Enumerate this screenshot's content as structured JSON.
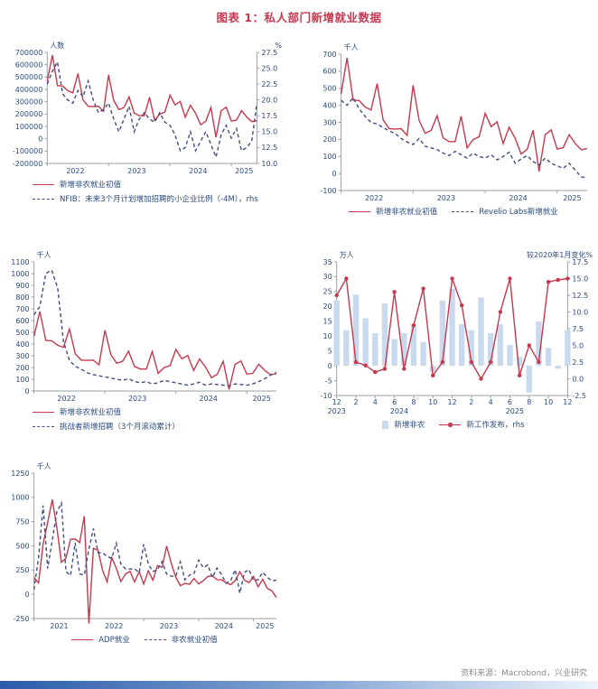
{
  "page": {
    "title": "图表 1：私人部门新增就业数据",
    "source": "资料来源：Macrobond，兴业研究"
  },
  "colors": {
    "accent_red": "#c5394f",
    "navy": "#3f4f7d",
    "bar_blue": "#c9d9ee",
    "axis_line": "#9aa0a6",
    "text_navy": "#2b4a7d",
    "source_gray": "#8a8a8a",
    "footer_start": "#2a5caa",
    "footer_mid": "#89a9d6",
    "footer_end": "#edf3fa"
  },
  "chart_data": [
    {
      "id": "nonfarm-vs-nfib",
      "type": "line",
      "unit_left": "人数",
      "unit_right": "%",
      "x_mode": "years",
      "x_start_year": 2022,
      "n_points": 42,
      "x_tick_years": [
        "2022",
        "2023",
        "2024",
        "2025"
      ],
      "yticks_left": [
        "700000",
        "600000",
        "500000",
        "400000",
        "300000",
        "200000",
        "100000",
        "0",
        "-100000",
        "-200000"
      ],
      "ylim_left": [
        -200000,
        700000
      ],
      "yticks_right": [
        "27.5",
        "25.0",
        "22.5",
        "20.0",
        "17.5",
        "15.0",
        "12.5",
        "10.0"
      ],
      "ylim_right": [
        10,
        27.5
      ],
      "series": [
        {
          "name": "新增非农就业初值",
          "axis": "left",
          "type": "line",
          "style": "solid",
          "color": "accent_red",
          "values": [
            467000,
            678000,
            431000,
            428000,
            390000,
            372000,
            528000,
            315000,
            263000,
            261000,
            263000,
            223000,
            517000,
            311000,
            236000,
            253000,
            339000,
            209000,
            187000,
            187000,
            336000,
            150000,
            199000,
            216000,
            353000,
            275000,
            303000,
            175000,
            272000,
            206000,
            114000,
            142000,
            254000,
            12000,
            227000,
            256000,
            143000,
            151000,
            228000,
            177000,
            139000,
            147000
          ]
        },
        {
          "name": "NFIB：未来3个月计划增加招聘的小企业比例（-4M），rhs",
          "axis": "right",
          "type": "line",
          "style": "dashed",
          "color": "navy",
          "values": [
            22.5,
            24.5,
            26.0,
            21.0,
            20.0,
            19.5,
            21.5,
            20.5,
            23.0,
            20.0,
            18.0,
            18.5,
            19.5,
            17.0,
            15.0,
            17.0,
            19.0,
            15.0,
            17.0,
            18.0,
            17.0,
            16.5,
            18.0,
            16.5,
            16.0,
            14.5,
            12.0,
            12.5,
            15.0,
            12.0,
            13.5,
            15.0,
            13.0,
            11.0,
            14.5,
            16.0,
            14.0,
            15.5,
            12.0,
            12.5,
            13.5,
            19.5
          ]
        }
      ]
    },
    {
      "id": "nonfarm-vs-revelio",
      "type": "line",
      "unit_left": "千人",
      "x_mode": "years",
      "x_start_year": 2022,
      "n_points": 42,
      "x_tick_years": [
        "2022",
        "2023",
        "2024",
        "2025"
      ],
      "yticks_left": [
        "700",
        "600",
        "500",
        "400",
        "300",
        "200",
        "100",
        "0",
        "-100"
      ],
      "ylim_left": [
        -100,
        700
      ],
      "series": [
        {
          "name": "新增非农就业初值",
          "axis": "left",
          "type": "line",
          "style": "solid",
          "color": "accent_red",
          "values": [
            467,
            678,
            431,
            428,
            390,
            372,
            528,
            315,
            263,
            261,
            263,
            223,
            517,
            311,
            236,
            253,
            339,
            209,
            187,
            187,
            336,
            150,
            199,
            216,
            353,
            275,
            303,
            175,
            272,
            206,
            114,
            142,
            254,
            12,
            227,
            256,
            143,
            151,
            228,
            177,
            139,
            147
          ]
        },
        {
          "name": "Revelio Labs新增就业",
          "axis": "left",
          "type": "line",
          "style": "dashed",
          "color": "navy",
          "values": [
            430,
            400,
            445,
            380,
            335,
            300,
            290,
            270,
            250,
            235,
            205,
            185,
            170,
            205,
            160,
            150,
            140,
            120,
            105,
            130,
            110,
            90,
            120,
            100,
            90,
            110,
            80,
            100,
            125,
            60,
            85,
            105,
            70,
            50,
            90,
            60,
            45,
            30,
            60,
            20,
            -20,
            -25
          ]
        }
      ]
    },
    {
      "id": "nonfarm-vs-challenger",
      "type": "line",
      "unit_left": "千人",
      "x_mode": "years",
      "x_start_year": 2022,
      "n_points": 42,
      "x_tick_years": [
        "2022",
        "2023",
        "2024",
        "2025"
      ],
      "yticks_left": [
        "1100",
        "1000",
        "900",
        "800",
        "700",
        "600",
        "500",
        "400",
        "300",
        "200",
        "100",
        "0"
      ],
      "ylim_left": [
        0,
        1100
      ],
      "series": [
        {
          "name": "新增非农就业初值",
          "axis": "left",
          "type": "line",
          "style": "solid",
          "color": "accent_red",
          "values": [
            467,
            678,
            431,
            428,
            390,
            372,
            528,
            315,
            263,
            261,
            263,
            223,
            517,
            311,
            236,
            253,
            339,
            209,
            187,
            187,
            336,
            150,
            199,
            216,
            353,
            275,
            303,
            175,
            272,
            206,
            114,
            142,
            254,
            12,
            227,
            256,
            143,
            151,
            228,
            177,
            139,
            147
          ]
        },
        {
          "name": "挑战者新增招聘（3个月滚动累计）",
          "axis": "left",
          "type": "line",
          "style": "dashed",
          "color": "navy",
          "values": [
            650,
            720,
            1000,
            1030,
            880,
            420,
            260,
            210,
            185,
            155,
            140,
            130,
            120,
            110,
            100,
            90,
            105,
            80,
            70,
            80,
            60,
            70,
            90,
            80,
            70,
            60,
            50,
            60,
            75,
            50,
            60,
            55,
            50,
            45,
            60,
            55,
            50,
            60,
            80,
            105,
            135,
            160
          ]
        }
      ]
    },
    {
      "id": "nonfarm-vs-job-postings",
      "type": "mixed",
      "unit_left": "万人",
      "unit_right": "较2020年1月变化%",
      "x_mode": "months",
      "n_points": 25,
      "x_tick_labels": [
        {
          "i": 0,
          "label": "12"
        },
        {
          "i": 2,
          "label": "2"
        },
        {
          "i": 4,
          "label": "4"
        },
        {
          "i": 6,
          "label": "6"
        },
        {
          "i": 8,
          "label": "8"
        },
        {
          "i": 10,
          "label": "10"
        },
        {
          "i": 12,
          "label": "12"
        },
        {
          "i": 14,
          "label": "2"
        },
        {
          "i": 16,
          "label": "4"
        },
        {
          "i": 18,
          "label": "6"
        },
        {
          "i": 20,
          "label": "8"
        },
        {
          "i": 22,
          "label": "10"
        },
        {
          "i": 24,
          "label": "12"
        }
      ],
      "x_year_labels": [
        {
          "i": 0,
          "label": "2023"
        },
        {
          "i": 6.5,
          "label": "2024"
        },
        {
          "i": 18.5,
          "label": "2025"
        }
      ],
      "yticks_left": [
        "35",
        "30",
        "25",
        "20",
        "15",
        "10",
        "5",
        "0",
        "-5",
        "-10"
      ],
      "ylim_left": [
        -10,
        35
      ],
      "yticks_right": [
        "17.5",
        "15.0",
        "12.5",
        "10.0",
        "7.5",
        "5.0",
        "2.5",
        "0.0",
        "-2.5"
      ],
      "ylim_right": [
        -2.5,
        17.5
      ],
      "series": [
        {
          "name": "新增非农",
          "axis": "left",
          "type": "bar",
          "color": "bar_blue",
          "values": [
            22,
            12,
            24,
            16,
            11,
            21,
            9,
            11,
            14,
            8,
            -2,
            22,
            26,
            14,
            12,
            23,
            11,
            14,
            7,
            3,
            -9,
            15,
            6,
            -1,
            12
          ]
        },
        {
          "name": "新工作发布，rhs",
          "axis": "right",
          "type": "line",
          "style": "solid",
          "markers": true,
          "color": "accent_red",
          "values": [
            12.5,
            15,
            2.5,
            2,
            1,
            1.5,
            13,
            1.5,
            8,
            13.5,
            0.5,
            2.5,
            15,
            11,
            2.5,
            0,
            2.5,
            10,
            15,
            0.5,
            5,
            2.5,
            14.5,
            14.8,
            15
          ]
        }
      ]
    },
    {
      "id": "adp-vs-nonfarm",
      "type": "line",
      "unit_left": "千人",
      "x_mode": "years",
      "x_start_year": 2021,
      "n_points": 54,
      "x_tick_years": [
        "2021",
        "2022",
        "2023",
        "2024",
        "2025"
      ],
      "yticks_left": [
        "1250",
        "1000",
        "750",
        "500",
        "250",
        "0",
        "-250"
      ],
      "ylim_left": [
        -250,
        1250
      ],
      "series": [
        {
          "name": "ADP就业",
          "axis": "left",
          "type": "line",
          "style": "solid",
          "color": "accent_red",
          "values": [
            174,
            117,
            517,
            742,
            978,
            692,
            330,
            374,
            568,
            571,
            534,
            807,
            -301,
            475,
            455,
            247,
            128,
            381,
            268,
            132,
            208,
            239,
            127,
            235,
            106,
            242,
            145,
            296,
            278,
            497,
            324,
            177,
            89,
            113,
            103,
            164,
            107,
            140,
            184,
            192,
            152,
            150,
            122,
            99,
            143,
            233,
            146,
            122,
            183,
            77,
            155,
            62,
            37,
            -33
          ]
        },
        {
          "name": "非农就业初值",
          "axis": "left",
          "type": "line",
          "style": "dashed",
          "color": "navy",
          "values": [
            49,
            379,
            916,
            266,
            559,
            850,
            943,
            235,
            194,
            531,
            210,
            199,
            467,
            678,
            431,
            428,
            390,
            372,
            528,
            315,
            263,
            261,
            263,
            223,
            517,
            311,
            236,
            253,
            339,
            209,
            187,
            187,
            336,
            150,
            199,
            216,
            353,
            275,
            303,
            175,
            272,
            206,
            114,
            142,
            254,
            12,
            227,
            256,
            143,
            151,
            228,
            177,
            139,
            147
          ]
        }
      ]
    }
  ]
}
